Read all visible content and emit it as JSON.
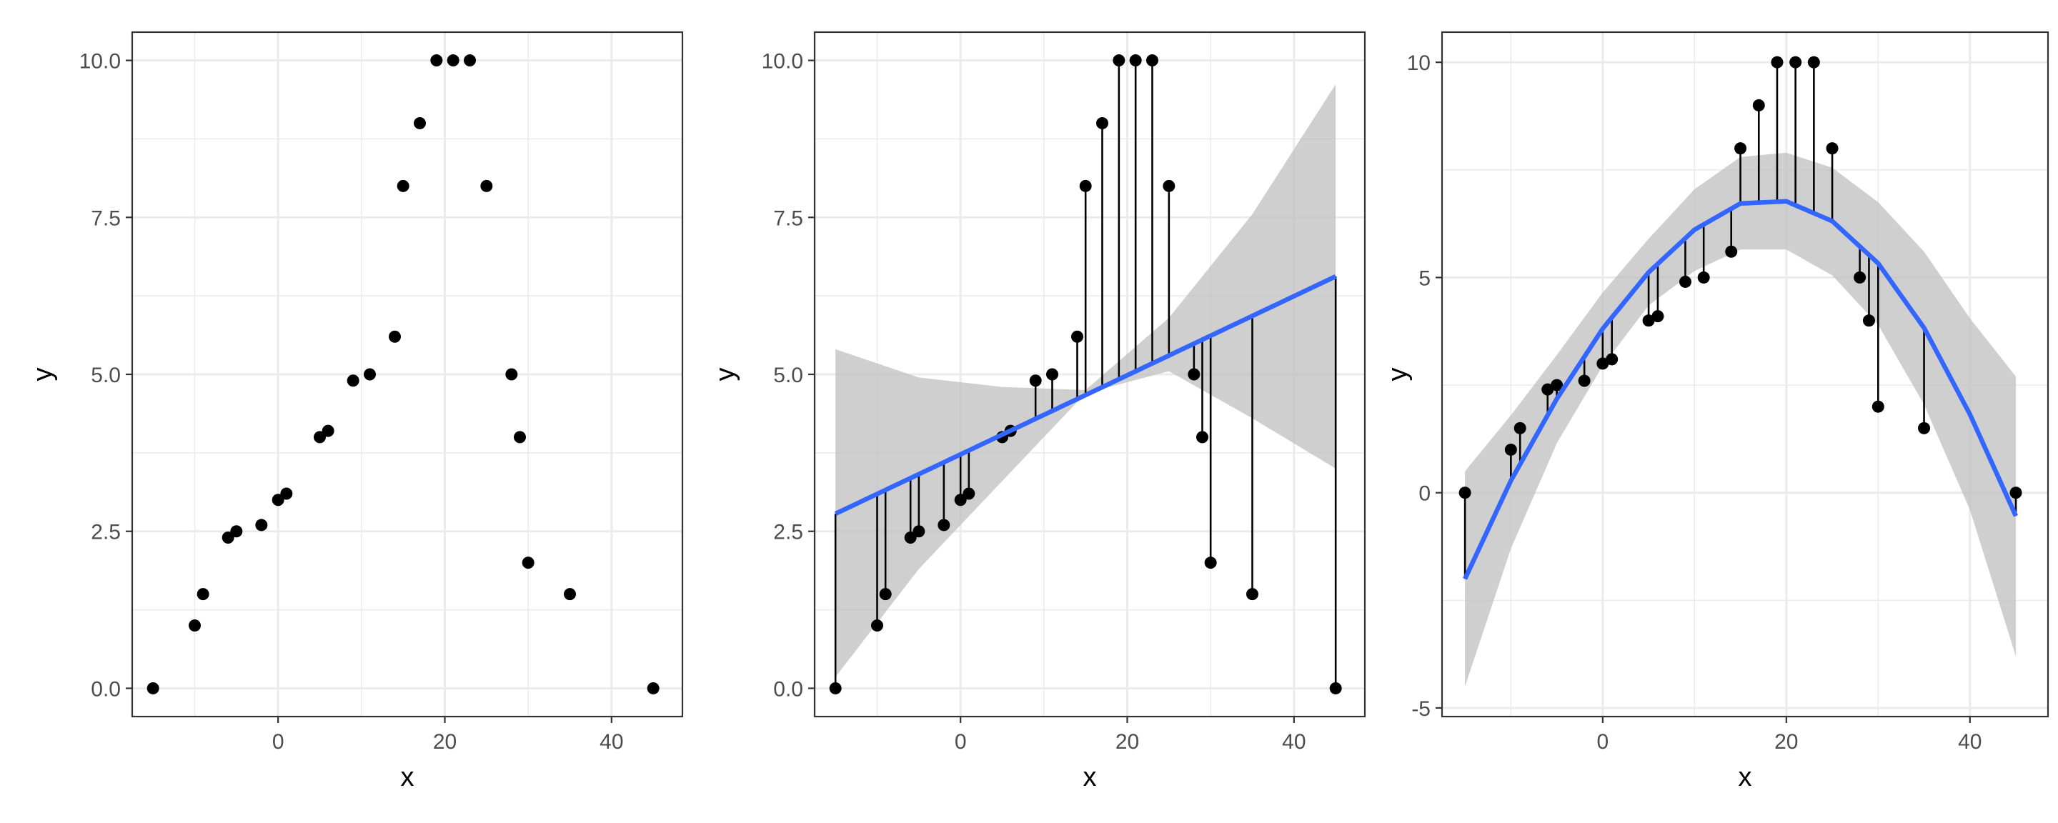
{
  "colors": {
    "points": "#000000",
    "fit_line": "#3366FF",
    "ribbon": "#bfbfbf",
    "grid": "#ebebeb",
    "panel_border": "#333333",
    "residual_segments": "#000000"
  },
  "chart_data": [
    {
      "type": "scatter",
      "xlabel": "x",
      "ylabel": "y",
      "xlim": [
        -17.5,
        48.5
      ],
      "ylim": [
        -0.45,
        10.45
      ],
      "xticks": [
        0,
        20,
        40
      ],
      "xtick_labels": [
        "0",
        "20",
        "40"
      ],
      "yticks": [
        0,
        2.5,
        5,
        7.5,
        10
      ],
      "ytick_labels": [
        "0.0",
        "2.5",
        "5.0",
        "7.5",
        "10.0"
      ],
      "grid": true,
      "x": [
        -15,
        -10,
        -9,
        -6,
        -5,
        -2,
        0,
        1,
        5,
        6,
        9,
        11,
        14,
        15,
        17,
        19,
        21,
        23,
        25,
        28,
        29,
        30,
        35,
        45
      ],
      "y": [
        0,
        1,
        1.5,
        2.4,
        2.5,
        2.6,
        3,
        3.1,
        4,
        4.1,
        4.9,
        5,
        5.6,
        8,
        9,
        10,
        10,
        10,
        8,
        5,
        4,
        2,
        1.5,
        0
      ]
    },
    {
      "type": "scatter",
      "overlay": "linear fit with confidence band and residual segments",
      "xlabel": "x",
      "ylabel": "y",
      "xlim": [
        -17.5,
        48.5
      ],
      "ylim": [
        -0.45,
        10.45
      ],
      "xticks": [
        0,
        20,
        40
      ],
      "xtick_labels": [
        "0",
        "20",
        "40"
      ],
      "yticks": [
        0,
        2.5,
        5,
        7.5,
        10
      ],
      "ytick_labels": [
        "0.0",
        "2.5",
        "5.0",
        "7.5",
        "10.0"
      ],
      "grid": true,
      "x": [
        -15,
        -10,
        -9,
        -6,
        -5,
        -2,
        0,
        1,
        5,
        6,
        9,
        11,
        14,
        15,
        17,
        19,
        21,
        23,
        25,
        28,
        29,
        30,
        35,
        45
      ],
      "y": [
        0,
        1,
        1.5,
        2.4,
        2.5,
        2.6,
        3,
        3.1,
        4,
        4.1,
        4.9,
        5,
        5.6,
        8,
        9,
        10,
        10,
        10,
        8,
        5,
        4,
        2,
        1.5,
        0
      ],
      "fit": {
        "x": [
          -15,
          -5,
          5,
          15,
          25,
          35,
          45
        ],
        "y": [
          2.78,
          3.41,
          4.04,
          4.67,
          5.3,
          5.93,
          6.56
        ],
        "lower": [
          0.18,
          1.9,
          3.3,
          4.7,
          5.05,
          4.3,
          3.5
        ],
        "upper": [
          5.4,
          4.95,
          4.8,
          4.75,
          5.9,
          7.55,
          9.62
        ]
      }
    },
    {
      "type": "scatter",
      "overlay": "quadratic fit with confidence band and residual segments",
      "xlabel": "x",
      "ylabel": "y",
      "xlim": [
        -17.5,
        48.5
      ],
      "ylim": [
        -5.2,
        10.7
      ],
      "xticks": [
        0,
        20,
        40
      ],
      "xtick_labels": [
        "0",
        "20",
        "40"
      ],
      "yticks": [
        -5,
        0,
        5,
        10
      ],
      "ytick_labels": [
        "-5",
        "0",
        "5",
        "10"
      ],
      "grid": true,
      "x": [
        -15,
        -10,
        -9,
        -6,
        -5,
        -2,
        0,
        1,
        5,
        6,
        9,
        11,
        14,
        15,
        17,
        19,
        21,
        23,
        25,
        28,
        29,
        30,
        35,
        45
      ],
      "y": [
        0,
        1,
        1.5,
        2.4,
        2.5,
        2.6,
        3,
        3.1,
        4,
        4.1,
        4.9,
        5,
        5.6,
        8,
        9,
        10,
        10,
        10,
        8,
        5,
        4,
        2,
        1.5,
        0
      ],
      "fit": {
        "x": [
          -15,
          -10,
          -5,
          0,
          5,
          10,
          15,
          20,
          25,
          30,
          35,
          40,
          45
        ],
        "y": [
          -2.0,
          0.28,
          2.18,
          3.81,
          5.12,
          6.11,
          6.72,
          6.77,
          6.31,
          5.33,
          3.83,
          1.82,
          -0.54
        ],
        "lower": [
          -4.5,
          -1.3,
          1.15,
          2.95,
          4.35,
          5.15,
          5.65,
          5.65,
          5.05,
          3.9,
          2.05,
          -0.4,
          -3.8
        ],
        "upper": [
          0.5,
          1.8,
          3.2,
          4.65,
          5.9,
          7.05,
          7.8,
          7.9,
          7.55,
          6.75,
          5.6,
          4.05,
          2.7
        ]
      }
    }
  ]
}
